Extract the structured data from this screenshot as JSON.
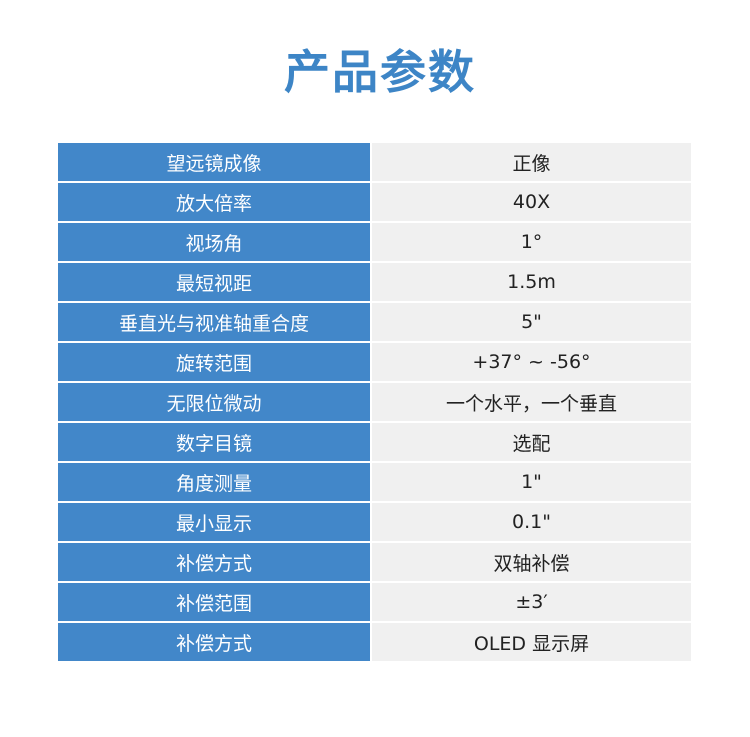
{
  "title": "产品参数",
  "colors": {
    "title": "#3d85c6",
    "label_bg": "#4287c9",
    "value_bg": "#f0f0f0"
  },
  "rows": [
    {
      "label": "望远镜成像",
      "value": "正像"
    },
    {
      "label": "放大倍率",
      "value": "40X"
    },
    {
      "label": "视场角",
      "value": "1°"
    },
    {
      "label": "最短视距",
      "value": "1.5m"
    },
    {
      "label": "垂直光与视准轴重合度",
      "value": "5\""
    },
    {
      "label": "旋转范围",
      "value": "+37° ~ -56°"
    },
    {
      "label": "无限位微动",
      "value": "一个水平，一个垂直"
    },
    {
      "label": "数字目镜",
      "value": "选配"
    },
    {
      "label": "角度测量",
      "value": "1\""
    },
    {
      "label": "最小显示",
      "value": "0.1\""
    },
    {
      "label": "补偿方式",
      "value": "双轴补偿"
    },
    {
      "label": "补偿范围",
      "value": "±3′"
    },
    {
      "label": "补偿方式",
      "value": "OLED 显示屏"
    }
  ]
}
